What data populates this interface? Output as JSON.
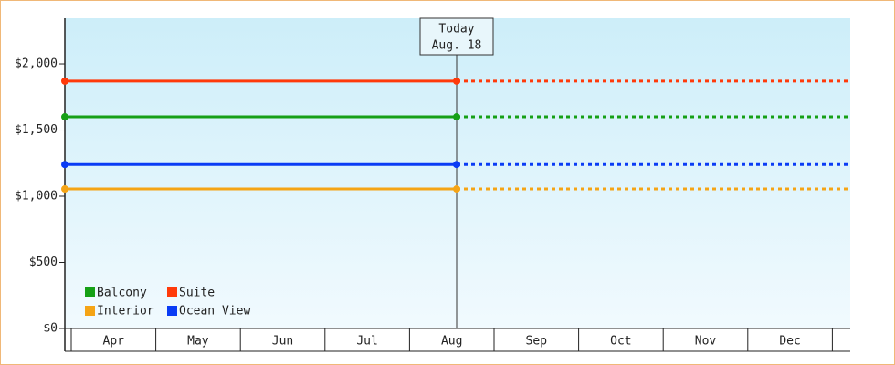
{
  "chart_data": {
    "type": "line",
    "categories": [
      "Apr",
      "May",
      "Jun",
      "Jul",
      "Aug",
      "Sep",
      "Oct",
      "Nov",
      "Dec"
    ],
    "series": [
      {
        "name": "Balcony",
        "color": "#16a016",
        "value": 1600
      },
      {
        "name": "Suite",
        "color": "#ff3a0a",
        "value": 1870
      },
      {
        "name": "Interior",
        "color": "#f5a415",
        "value": 1055
      },
      {
        "name": "Ocean View",
        "color": "#0a3cf5",
        "value": 1240
      }
    ],
    "ylim": [
      0,
      2345
    ],
    "yticks": [
      {
        "value": 0,
        "label": "$0"
      },
      {
        "value": 500,
        "label": "$500"
      },
      {
        "value": 1000,
        "label": "$1,000"
      },
      {
        "value": 1500,
        "label": "$1,500"
      },
      {
        "value": 2000,
        "label": "$2,000"
      }
    ],
    "annotation": {
      "lines": [
        "Today",
        "Aug. 18"
      ]
    },
    "legend": "bottom-left"
  }
}
